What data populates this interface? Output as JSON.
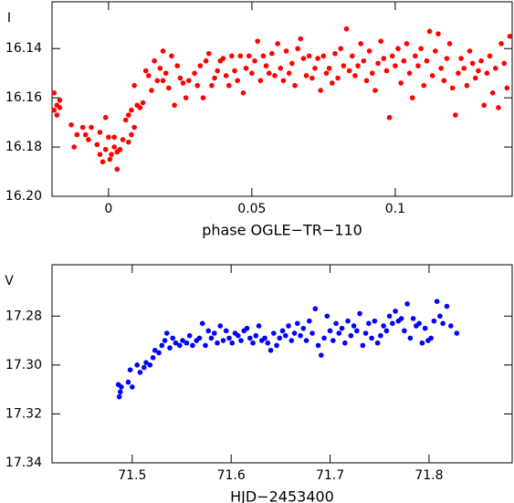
{
  "chart_data": [
    {
      "type": "scatter",
      "ylabel": "I",
      "xlabel": "phase OGLE−TR−110",
      "color": "#ff0000",
      "xlim": [
        -0.0197,
        0.1408
      ],
      "ylim": [
        16.2,
        16.121
      ],
      "xticks": [
        0,
        0.05,
        0.1
      ],
      "yticks": [
        16.14,
        16.16,
        16.18,
        {
          "value": 16.2,
          "label": "16.20"
        }
      ],
      "x": [
        -0.019,
        -0.019,
        -0.018,
        -0.017,
        -0.018,
        -0.017,
        -0.013,
        -0.012,
        -0.011,
        -0.009,
        -0.008,
        -0.007,
        -0.006,
        -0.004,
        -0.003,
        -0.003,
        -0.002,
        -0.001,
        0,
        -0.001,
        0.0005,
        0.001,
        0.002,
        0.002,
        0.003,
        0.003,
        0.004,
        0.005,
        0.006,
        0.007,
        0.007,
        0.008,
        0.008,
        0.009,
        0.009,
        0.01,
        0.011,
        0.012,
        0.013,
        0.014,
        0.015,
        0.016,
        0.017,
        0.018,
        0.019,
        0.019,
        0.02,
        0.021,
        0.022,
        0.023,
        0.024,
        0.025,
        0.026,
        0.027,
        0.028,
        0.03,
        0.031,
        0.032,
        0.033,
        0.034,
        0.035,
        0.036,
        0.037,
        0.038,
        0.039,
        0.04,
        0.041,
        0.042,
        0.043,
        0.044,
        0.045,
        0.046,
        0.047,
        0.048,
        0.049,
        0.05,
        0.051,
        0.052,
        0.053,
        0.054,
        0.055,
        0.056,
        0.057,
        0.058,
        0.059,
        0.06,
        0.061,
        0.062,
        0.063,
        0.064,
        0.065,
        0.066,
        0.067,
        0.068,
        0.069,
        0.07,
        0.071,
        0.072,
        0.073,
        0.074,
        0.075,
        0.076,
        0.077,
        0.078,
        0.079,
        0.08,
        0.081,
        0.082,
        0.083,
        0.084,
        0.085,
        0.086,
        0.087,
        0.088,
        0.089,
        0.09,
        0.091,
        0.092,
        0.093,
        0.094,
        0.095,
        0.096,
        0.097,
        0.098,
        0.099,
        0.1,
        0.101,
        0.102,
        0.103,
        0.104,
        0.105,
        0.106,
        0.107,
        0.108,
        0.109,
        0.11,
        0.111,
        0.112,
        0.113,
        0.114,
        0.115,
        0.116,
        0.117,
        0.118,
        0.119,
        0.12,
        0.121,
        0.122,
        0.123,
        0.124,
        0.125,
        0.126,
        0.127,
        0.128,
        0.129,
        0.13,
        0.131,
        0.132,
        0.133,
        0.134,
        0.135,
        0.136,
        0.137,
        0.138,
        0.139,
        0.14
      ],
      "values": [
        16.158,
        16.165,
        16.163,
        16.161,
        16.167,
        16.164,
        16.171,
        16.18,
        16.175,
        16.172,
        16.175,
        16.177,
        16.172,
        16.179,
        16.183,
        16.174,
        16.186,
        16.168,
        16.176,
        16.181,
        16.185,
        16.183,
        16.18,
        16.176,
        16.189,
        16.182,
        16.181,
        16.177,
        16.169,
        16.178,
        16.167,
        16.165,
        16.175,
        16.172,
        16.155,
        16.163,
        16.164,
        16.162,
        16.149,
        16.151,
        16.157,
        16.145,
        16.153,
        16.148,
        16.141,
        16.153,
        16.15,
        16.156,
        16.143,
        16.163,
        16.147,
        16.152,
        16.154,
        16.16,
        16.153,
        16.15,
        16.155,
        16.147,
        16.16,
        16.145,
        16.142,
        16.155,
        16.152,
        16.149,
        16.145,
        16.144,
        16.151,
        16.155,
        16.143,
        16.149,
        16.153,
        16.143,
        16.158,
        16.148,
        16.143,
        16.15,
        16.145,
        16.137,
        16.153,
        16.143,
        16.147,
        16.15,
        16.142,
        16.151,
        16.138,
        16.148,
        16.153,
        16.141,
        16.15,
        16.146,
        16.155,
        16.14,
        16.136,
        16.144,
        16.151,
        16.143,
        16.152,
        16.148,
        16.144,
        16.157,
        16.143,
        16.15,
        16.148,
        16.154,
        16.142,
        16.152,
        16.14,
        16.147,
        16.132,
        16.149,
        16.143,
        16.151,
        16.147,
        16.138,
        16.145,
        16.153,
        16.141,
        16.15,
        16.157,
        16.146,
        16.137,
        16.144,
        16.149,
        16.168,
        16.143,
        16.147,
        16.14,
        16.154,
        16.145,
        16.138,
        16.15,
        16.16,
        16.143,
        16.147,
        16.14,
        16.155,
        16.145,
        16.133,
        16.151,
        16.141,
        16.134,
        16.148,
        16.153,
        16.144,
        16.138,
        16.156,
        16.167,
        16.15,
        16.144,
        16.148,
        16.155,
        16.141,
        16.146,
        16.152,
        16.149,
        16.145,
        16.163,
        16.15,
        16.143,
        16.158,
        16.148,
        16.164,
        16.138,
        16.146,
        16.156,
        16.135
      ]
    },
    {
      "type": "scatter",
      "ylabel": "V",
      "xlabel": "HJD−2453400",
      "color": "#0000ff",
      "xlim": [
        71.419,
        71.884
      ],
      "ylim": [
        17.34,
        17.259
      ],
      "xticks": [
        71.5,
        71.6,
        71.7,
        71.8
      ],
      "yticks": [
        17.28,
        {
          "value": 17.3,
          "label": "17.30"
        },
        17.32,
        17.34
      ],
      "x": [
        71.486,
        71.487,
        71.488,
        71.489,
        71.496,
        71.498,
        71.5,
        71.505,
        71.508,
        71.512,
        71.514,
        71.518,
        71.521,
        71.523,
        71.527,
        71.53,
        71.533,
        71.535,
        71.538,
        71.541,
        71.544,
        71.548,
        71.551,
        71.555,
        71.558,
        71.561,
        71.565,
        71.568,
        71.571,
        71.574,
        71.577,
        71.58,
        71.583,
        71.586,
        71.589,
        71.592,
        71.595,
        71.598,
        71.601,
        71.604,
        71.607,
        71.61,
        71.613,
        71.616,
        71.619,
        71.622,
        71.625,
        71.628,
        71.631,
        71.634,
        71.637,
        71.64,
        71.643,
        71.646,
        71.649,
        71.652,
        71.655,
        71.658,
        71.661,
        71.664,
        71.667,
        71.67,
        71.673,
        71.676,
        71.679,
        71.682,
        71.685,
        71.688,
        71.691,
        71.694,
        71.697,
        71.7,
        71.703,
        71.706,
        71.709,
        71.712,
        71.715,
        71.718,
        71.721,
        71.724,
        71.727,
        71.73,
        71.733,
        71.736,
        71.739,
        71.742,
        71.745,
        71.748,
        71.751,
        71.754,
        71.757,
        71.76,
        71.763,
        71.766,
        71.769,
        71.772,
        71.775,
        71.778,
        71.781,
        71.784,
        71.787,
        71.79,
        71.793,
        71.796,
        71.799,
        71.802,
        71.805,
        71.808,
        71.811,
        71.814,
        71.818,
        71.822,
        71.828
      ],
      "values": [
        17.308,
        17.313,
        17.311,
        17.309,
        17.307,
        17.302,
        17.309,
        17.3,
        17.303,
        17.301,
        17.299,
        17.3,
        17.297,
        17.294,
        17.295,
        17.292,
        17.29,
        17.287,
        17.293,
        17.289,
        17.291,
        17.292,
        17.29,
        17.291,
        17.288,
        17.292,
        17.29,
        17.289,
        17.283,
        17.292,
        17.286,
        17.289,
        17.287,
        17.291,
        17.284,
        17.29,
        17.286,
        17.289,
        17.291,
        17.287,
        17.288,
        17.29,
        17.286,
        17.285,
        17.289,
        17.291,
        17.288,
        17.284,
        17.29,
        17.289,
        17.291,
        17.294,
        17.287,
        17.292,
        17.289,
        17.286,
        17.288,
        17.284,
        17.29,
        17.287,
        17.283,
        17.288,
        17.285,
        17.29,
        17.282,
        17.287,
        17.277,
        17.292,
        17.296,
        17.289,
        17.28,
        17.286,
        17.29,
        17.283,
        17.287,
        17.285,
        17.291,
        17.282,
        17.288,
        17.284,
        17.286,
        17.279,
        17.292,
        17.287,
        17.283,
        17.289,
        17.282,
        17.291,
        17.288,
        17.284,
        17.286,
        17.28,
        17.283,
        17.278,
        17.282,
        17.281,
        17.286,
        17.275,
        17.289,
        17.281,
        17.284,
        17.283,
        17.291,
        17.285,
        17.29,
        17.289,
        17.282,
        17.274,
        17.28,
        17.283,
        17.276,
        17.284,
        17.287
      ]
    }
  ]
}
